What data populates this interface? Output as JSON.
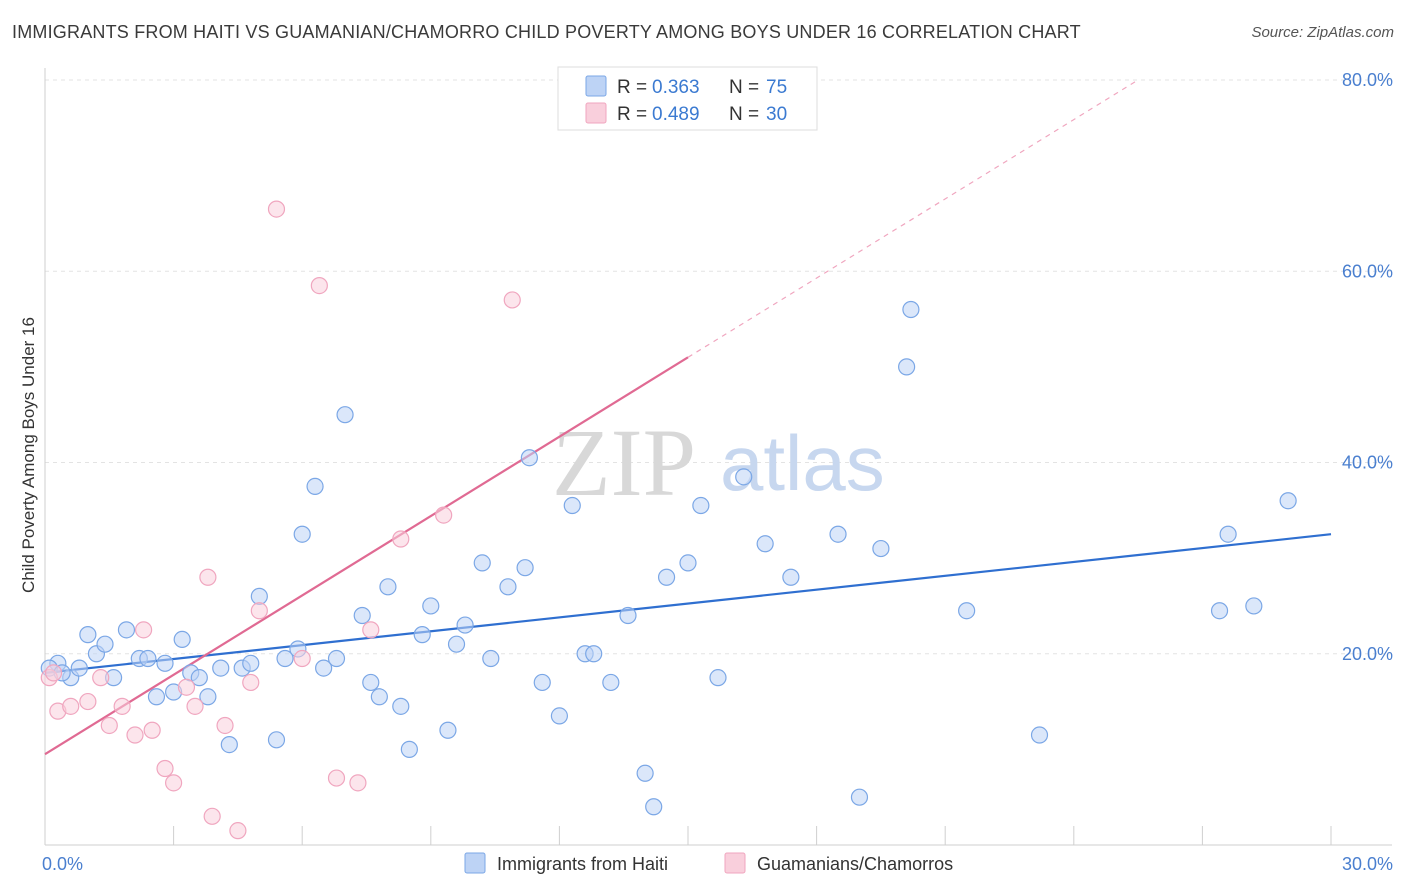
{
  "chart_data": {
    "type": "scatter",
    "title": "IMMIGRANTS FROM HAITI VS GUAMANIAN/CHAMORRO CHILD POVERTY AMONG BOYS UNDER 16 CORRELATION CHART",
    "source": "Source: ZipAtlas.com",
    "ylabel": "Child Poverty Among Boys Under 16",
    "xlabel": "",
    "xlim": [
      0,
      30
    ],
    "ylim": [
      0,
      80
    ],
    "x_tick_labels": [
      {
        "value": 0,
        "label": "0.0%"
      },
      {
        "value": 30,
        "label": "30.0%"
      }
    ],
    "y_tick_labels": [
      {
        "value": 20,
        "label": "20.0%"
      },
      {
        "value": 40,
        "label": "40.0%"
      },
      {
        "value": 60,
        "label": "60.0%"
      },
      {
        "value": 80,
        "label": "80.0%"
      }
    ],
    "watermark": {
      "zip": "ZIP",
      "atlas": "atlas"
    },
    "legend": {
      "r_label": "R =",
      "n_label": "N =",
      "entries": [
        {
          "r": "0.363",
          "n": "75"
        },
        {
          "r": "0.489",
          "n": "30"
        }
      ]
    },
    "series": [
      {
        "name": "Immigrants from Haiti",
        "color": "#7ba7e6",
        "fill": "#bdd3f5",
        "line_color": "#2f6fd0",
        "trend": {
          "x0": 0,
          "y0": 18.0,
          "x1": 30,
          "y1": 32.5
        },
        "points": [
          [
            0.3,
            19.0
          ],
          [
            0.6,
            17.5
          ],
          [
            0.8,
            18.5
          ],
          [
            1.0,
            22.0
          ],
          [
            1.2,
            20.0
          ],
          [
            1.4,
            21.0
          ],
          [
            1.6,
            17.5
          ],
          [
            1.9,
            22.5
          ],
          [
            2.2,
            19.5
          ],
          [
            2.4,
            19.5
          ],
          [
            2.6,
            15.5
          ],
          [
            2.8,
            19.0
          ],
          [
            3.0,
            16.0
          ],
          [
            3.2,
            21.5
          ],
          [
            3.4,
            18.0
          ],
          [
            3.6,
            17.5
          ],
          [
            3.8,
            15.5
          ],
          [
            4.1,
            18.5
          ],
          [
            4.3,
            10.5
          ],
          [
            4.6,
            18.5
          ],
          [
            4.8,
            19.0
          ],
          [
            5.0,
            26.0
          ],
          [
            5.4,
            11.0
          ],
          [
            5.6,
            19.5
          ],
          [
            5.9,
            20.5
          ],
          [
            6.0,
            32.5
          ],
          [
            6.3,
            37.5
          ],
          [
            6.5,
            18.5
          ],
          [
            6.8,
            19.5
          ],
          [
            7.0,
            45.0
          ],
          [
            7.4,
            24.0
          ],
          [
            7.6,
            17.0
          ],
          [
            7.8,
            15.5
          ],
          [
            8.0,
            27.0
          ],
          [
            8.3,
            14.5
          ],
          [
            8.5,
            10.0
          ],
          [
            8.8,
            22.0
          ],
          [
            9.0,
            25.0
          ],
          [
            9.4,
            12.0
          ],
          [
            9.6,
            21.0
          ],
          [
            9.8,
            23.0
          ],
          [
            10.2,
            29.5
          ],
          [
            10.4,
            19.5
          ],
          [
            10.8,
            27.0
          ],
          [
            11.2,
            29.0
          ],
          [
            11.3,
            40.5
          ],
          [
            11.6,
            17.0
          ],
          [
            12.0,
            13.5
          ],
          [
            12.3,
            35.5
          ],
          [
            12.6,
            20.0
          ],
          [
            12.8,
            20.0
          ],
          [
            13.2,
            17.0
          ],
          [
            13.6,
            24.0
          ],
          [
            14.0,
            7.5
          ],
          [
            14.2,
            4.0
          ],
          [
            14.5,
            28.0
          ],
          [
            15.0,
            29.5
          ],
          [
            15.3,
            35.5
          ],
          [
            15.7,
            17.5
          ],
          [
            16.3,
            38.5
          ],
          [
            16.8,
            31.5
          ],
          [
            17.4,
            28.0
          ],
          [
            18.5,
            32.5
          ],
          [
            19.0,
            5.0
          ],
          [
            19.5,
            31.0
          ],
          [
            20.2,
            56.0
          ],
          [
            20.1,
            50.0
          ],
          [
            21.5,
            24.5
          ],
          [
            23.2,
            11.5
          ],
          [
            27.4,
            24.5
          ],
          [
            28.2,
            25.0
          ],
          [
            27.6,
            32.5
          ],
          [
            29.0,
            36.0
          ],
          [
            0.1,
            18.5
          ],
          [
            0.4,
            18.0
          ]
        ]
      },
      {
        "name": "Guamanians/Chamorros",
        "color": "#f0a6bf",
        "fill": "#f9cfdc",
        "line_color": "#e06a93",
        "trend": {
          "x0": 0,
          "y0": 9.5,
          "x1": 15,
          "y1": 51.0
        },
        "trend_extension": {
          "x0": 15,
          "y0": 51.0,
          "x1": 25.5,
          "y1": 80.0
        },
        "points": [
          [
            0.1,
            17.5
          ],
          [
            0.3,
            14.0
          ],
          [
            0.6,
            14.5
          ],
          [
            1.0,
            15.0
          ],
          [
            1.3,
            17.5
          ],
          [
            1.5,
            12.5
          ],
          [
            1.8,
            14.5
          ],
          [
            2.1,
            11.5
          ],
          [
            2.3,
            22.5
          ],
          [
            2.5,
            12.0
          ],
          [
            2.8,
            8.0
          ],
          [
            3.0,
            6.5
          ],
          [
            3.3,
            16.5
          ],
          [
            3.5,
            14.5
          ],
          [
            3.8,
            28.0
          ],
          [
            3.9,
            3.0
          ],
          [
            4.2,
            12.5
          ],
          [
            4.5,
            1.5
          ],
          [
            4.8,
            17.0
          ],
          [
            5.0,
            24.5
          ],
          [
            5.4,
            66.5
          ],
          [
            6.0,
            19.5
          ],
          [
            6.4,
            58.5
          ],
          [
            6.8,
            7.0
          ],
          [
            7.3,
            6.5
          ],
          [
            7.6,
            22.5
          ],
          [
            8.3,
            32.0
          ],
          [
            9.3,
            34.5
          ],
          [
            10.9,
            57.0
          ],
          [
            0.2,
            18.0
          ]
        ]
      }
    ]
  }
}
